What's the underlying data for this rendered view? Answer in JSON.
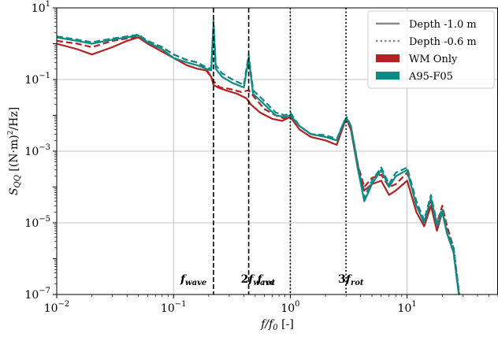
{
  "chart_data": {
    "type": "line",
    "xscale": "log",
    "yscale": "log",
    "xlim": [
      0.01,
      60
    ],
    "ylim": [
      1e-07,
      10
    ],
    "grid": true,
    "xlabel": "f/f0 [-]",
    "ylabel": "S_QQ [(N·m)²/Hz]",
    "x_ticks": [
      {
        "value": 0.01,
        "base": "10",
        "exp": "−2"
      },
      {
        "value": 0.1,
        "base": "10",
        "exp": "−1"
      },
      {
        "value": 1,
        "base": "10",
        "exp": "0"
      },
      {
        "value": 10,
        "base": "10",
        "exp": "1"
      }
    ],
    "y_ticks": [
      {
        "value": 1e-07,
        "base": "10",
        "exp": "−7"
      },
      {
        "value": 1e-05,
        "base": "10",
        "exp": "−5"
      },
      {
        "value": 0.001,
        "base": "10",
        "exp": "−3"
      },
      {
        "value": 0.1,
        "base": "10",
        "exp": "−1"
      },
      {
        "value": 10,
        "base": "10",
        "exp": "1"
      }
    ],
    "vlines": [
      {
        "x": 0.22,
        "style": "dashed",
        "label": "f",
        "sub": "wave",
        "prefix": ""
      },
      {
        "x": 0.44,
        "style": "dashed",
        "label": "f",
        "sub": "wave",
        "prefix": "2"
      },
      {
        "x": 1.0,
        "style": "dotted",
        "label": "f",
        "sub": "rot",
        "prefix": ""
      },
      {
        "x": 3.0,
        "style": "dotted",
        "label": "f",
        "sub": "rot",
        "prefix": "3"
      }
    ],
    "legend": {
      "location": "top-right",
      "entries": [
        {
          "label": "Depth -1.0 m",
          "kind": "line",
          "dash": "solid",
          "color": "#888888"
        },
        {
          "label": "Depth -0.6 m",
          "kind": "line",
          "dash": "dotted",
          "color": "#888888"
        },
        {
          "label": "WM Only",
          "kind": "patch",
          "color": "#b22222"
        },
        {
          "label": "A95-F05",
          "kind": "patch",
          "color": "#0d8a85"
        }
      ]
    },
    "series": [
      {
        "name": "WM Only",
        "depth": "Depth -1.0 m",
        "color": "#b22222",
        "dash": "solid",
        "x": [
          0.01,
          0.015,
          0.02,
          0.03,
          0.04,
          0.05,
          0.06,
          0.08,
          0.1,
          0.13,
          0.16,
          0.19,
          0.21,
          0.22,
          0.24,
          0.28,
          0.35,
          0.42,
          0.46,
          0.55,
          0.7,
          0.85,
          1.0,
          1.2,
          1.5,
          2.0,
          2.5,
          2.9,
          3.05,
          3.3,
          3.8,
          4.3,
          5.0,
          6.0,
          7.0,
          8.0,
          10.0,
          12.0,
          14.0,
          16.0,
          18.0,
          20.0,
          22.0,
          25.0,
          28.0
        ],
        "y": [
          1.0,
          0.7,
          0.5,
          0.8,
          1.2,
          1.5,
          1.0,
          0.6,
          0.4,
          0.25,
          0.2,
          0.18,
          0.12,
          0.07,
          0.06,
          0.05,
          0.04,
          0.03,
          0.02,
          0.012,
          0.008,
          0.007,
          0.009,
          0.004,
          0.0025,
          0.002,
          0.0015,
          0.006,
          0.0075,
          0.004,
          0.0003,
          8e-05,
          0.00012,
          0.00015,
          6e-05,
          8e-05,
          0.00015,
          2e-05,
          8e-06,
          3e-05,
          6e-06,
          2e-05,
          5e-06,
          1.5e-06,
          8e-08
        ]
      },
      {
        "name": "WM Only",
        "depth": "Depth -0.6 m",
        "color": "#b22222",
        "dash": "dashed",
        "x": [
          0.01,
          0.015,
          0.02,
          0.03,
          0.04,
          0.05,
          0.06,
          0.08,
          0.1,
          0.13,
          0.16,
          0.19,
          0.21,
          0.22,
          0.25,
          0.3,
          0.38,
          0.44,
          0.5,
          0.6,
          0.75,
          0.9,
          1.0,
          1.2,
          1.5,
          2.0,
          2.5,
          2.9,
          3.05,
          3.3,
          3.8,
          4.3,
          5.0,
          6.0,
          7.0,
          8.0,
          10.0,
          12.0,
          14.0,
          16.0,
          18.0,
          20.0,
          22.0,
          25.0,
          28.0
        ],
        "y": [
          1.2,
          1.0,
          0.8,
          1.2,
          1.4,
          1.6,
          1.2,
          0.8,
          0.5,
          0.35,
          0.3,
          0.2,
          0.12,
          0.09,
          0.06,
          0.055,
          0.045,
          0.05,
          0.03,
          0.015,
          0.01,
          0.008,
          0.01,
          0.005,
          0.003,
          0.0025,
          0.002,
          0.007,
          0.008,
          0.005,
          0.0004,
          0.0001,
          0.00018,
          0.00022,
          0.0001,
          0.00012,
          0.00025,
          4e-05,
          1e-05,
          4e-05,
          1e-05,
          3e-05,
          8e-06,
          2e-06,
          1e-07
        ]
      },
      {
        "name": "A95-F05",
        "depth": "Depth -1.0 m",
        "color": "#0d8a85",
        "dash": "solid",
        "x": [
          0.01,
          0.015,
          0.02,
          0.03,
          0.04,
          0.05,
          0.06,
          0.08,
          0.1,
          0.13,
          0.16,
          0.19,
          0.21,
          0.22,
          0.23,
          0.26,
          0.32,
          0.4,
          0.44,
          0.48,
          0.6,
          0.75,
          0.9,
          1.0,
          1.2,
          1.5,
          2.0,
          2.5,
          2.9,
          3.05,
          3.3,
          3.8,
          4.3,
          5.0,
          6.0,
          7.0,
          8.0,
          10.0,
          12.0,
          14.0,
          16.0,
          18.0,
          20.0,
          22.0,
          25.0,
          28.0
        ],
        "y": [
          1.5,
          1.2,
          1.0,
          1.3,
          1.5,
          1.7,
          1.1,
          0.7,
          0.4,
          0.3,
          0.25,
          0.2,
          0.18,
          3.5,
          0.2,
          0.12,
          0.08,
          0.06,
          0.4,
          0.04,
          0.02,
          0.01,
          0.009,
          0.01,
          0.005,
          0.003,
          0.0025,
          0.002,
          0.007,
          0.008,
          0.005,
          0.0003,
          4e-05,
          0.00012,
          0.0003,
          0.0001,
          0.0002,
          0.0003,
          3e-05,
          1e-05,
          5e-05,
          8e-06,
          2e-05,
          5e-06,
          1.5e-06,
          8e-08
        ]
      },
      {
        "name": "A95-F05",
        "depth": "Depth -0.6 m",
        "color": "#0d8a85",
        "dash": "dashed",
        "x": [
          0.01,
          0.015,
          0.02,
          0.03,
          0.04,
          0.05,
          0.06,
          0.08,
          0.1,
          0.13,
          0.16,
          0.19,
          0.21,
          0.22,
          0.23,
          0.26,
          0.32,
          0.4,
          0.44,
          0.48,
          0.6,
          0.75,
          0.9,
          1.0,
          1.2,
          1.5,
          2.0,
          2.5,
          2.9,
          3.05,
          3.3,
          3.8,
          4.3,
          5.0,
          6.0,
          7.0,
          8.0,
          10.0,
          12.0,
          14.0,
          16.0,
          18.0,
          20.0,
          22.0,
          25.0,
          28.0
        ],
        "y": [
          1.6,
          1.3,
          1.1,
          1.4,
          1.6,
          1.8,
          1.2,
          0.8,
          0.5,
          0.35,
          0.3,
          0.22,
          0.2,
          4.5,
          0.25,
          0.15,
          0.1,
          0.07,
          0.5,
          0.05,
          0.025,
          0.012,
          0.01,
          0.012,
          0.005,
          0.003,
          0.0028,
          0.0022,
          0.007,
          0.009,
          0.005,
          0.0004,
          5e-05,
          0.00015,
          0.00035,
          0.00012,
          0.00025,
          0.00035,
          4e-05,
          1.2e-05,
          6e-05,
          1e-05,
          2.5e-05,
          6e-06,
          2e-06,
          1e-07
        ]
      }
    ]
  }
}
